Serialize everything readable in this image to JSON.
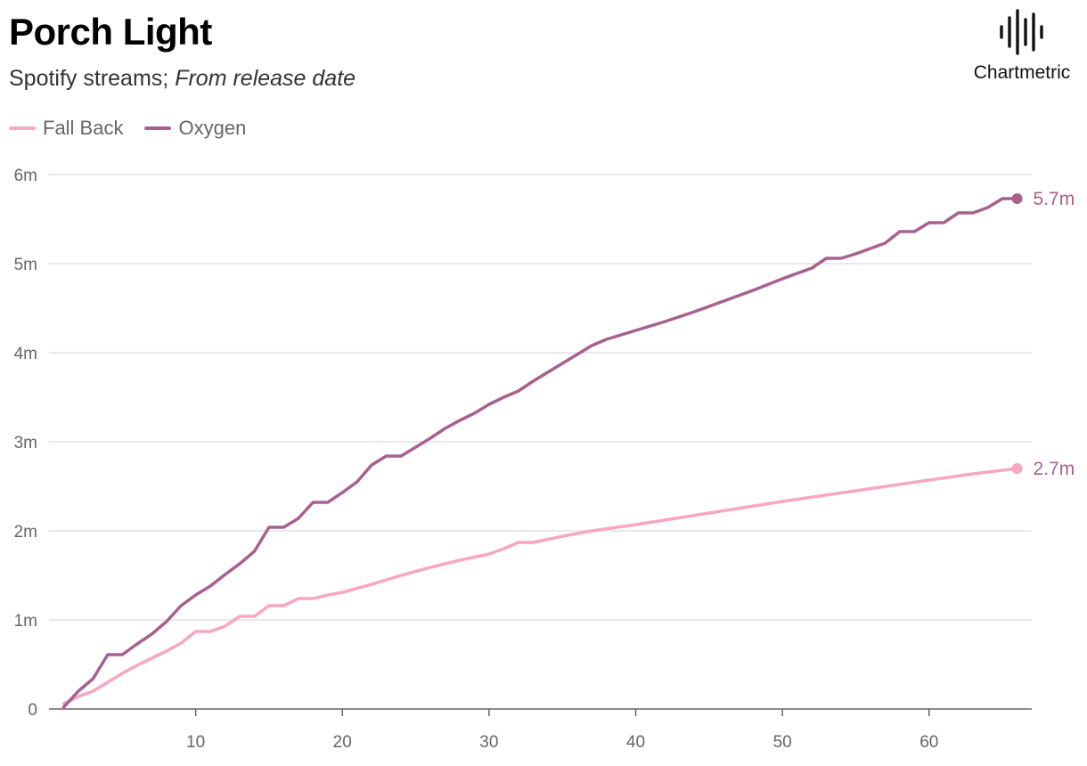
{
  "header": {
    "title": "Porch Light",
    "subtitle_plain": "Spotify streams;",
    "subtitle_italic": "From release date"
  },
  "brand": {
    "name": "Chartmetric",
    "icon": "chartmetric-waveform-icon"
  },
  "colors": {
    "fall_back": "#f9a6c2",
    "oxygen": "#a8608f",
    "grid": "#e2e2e2",
    "axis": "#666666"
  },
  "chart_data": {
    "type": "line",
    "title": "Porch Light",
    "subtitle": "Spotify streams; From release date",
    "xlabel": "",
    "ylabel": "",
    "xlim": [
      0,
      67
    ],
    "ylim": [
      0,
      6000000
    ],
    "x_ticks": [
      10,
      20,
      30,
      40,
      50,
      60
    ],
    "x_tick_labels": [
      "10",
      "20",
      "30",
      "40",
      "50",
      "60"
    ],
    "y_ticks": [
      0,
      1000000,
      2000000,
      3000000,
      4000000,
      5000000,
      6000000
    ],
    "y_tick_labels": [
      "0",
      "1m",
      "2m",
      "3m",
      "4m",
      "5m",
      "6m"
    ],
    "grid": "horizontal",
    "legend_position": "top-left",
    "series": [
      {
        "name": "Fall Back",
        "color": "#f9a6c2",
        "end_label": "2.7m",
        "points": [
          [
            1,
            60000
          ],
          [
            2,
            140000
          ],
          [
            3,
            200000
          ],
          [
            4,
            300000
          ],
          [
            5,
            400000
          ],
          [
            6,
            490000
          ],
          [
            7,
            570000
          ],
          [
            8,
            650000
          ],
          [
            9,
            740000
          ],
          [
            10,
            870000
          ],
          [
            11,
            870000
          ],
          [
            12,
            930000
          ],
          [
            13,
            1040000
          ],
          [
            14,
            1040000
          ],
          [
            15,
            1160000
          ],
          [
            16,
            1160000
          ],
          [
            17,
            1240000
          ],
          [
            18,
            1240000
          ],
          [
            19,
            1280000
          ],
          [
            20,
            1310000
          ],
          [
            22,
            1400000
          ],
          [
            24,
            1500000
          ],
          [
            26,
            1590000
          ],
          [
            28,
            1670000
          ],
          [
            30,
            1740000
          ],
          [
            31,
            1800000
          ],
          [
            32,
            1870000
          ],
          [
            33,
            1870000
          ],
          [
            35,
            1940000
          ],
          [
            37,
            2000000
          ],
          [
            40,
            2070000
          ],
          [
            45,
            2200000
          ],
          [
            50,
            2330000
          ],
          [
            55,
            2450000
          ],
          [
            60,
            2570000
          ],
          [
            63,
            2640000
          ],
          [
            66,
            2700000
          ]
        ]
      },
      {
        "name": "Oxygen",
        "color": "#a8608f",
        "end_label": "5.7m",
        "points": [
          [
            1,
            20000
          ],
          [
            2,
            200000
          ],
          [
            3,
            340000
          ],
          [
            4,
            610000
          ],
          [
            5,
            610000
          ],
          [
            6,
            730000
          ],
          [
            7,
            840000
          ],
          [
            8,
            980000
          ],
          [
            9,
            1160000
          ],
          [
            10,
            1280000
          ],
          [
            11,
            1380000
          ],
          [
            12,
            1510000
          ],
          [
            13,
            1630000
          ],
          [
            14,
            1770000
          ],
          [
            15,
            2040000
          ],
          [
            16,
            2040000
          ],
          [
            17,
            2140000
          ],
          [
            18,
            2320000
          ],
          [
            19,
            2320000
          ],
          [
            20,
            2430000
          ],
          [
            21,
            2550000
          ],
          [
            22,
            2740000
          ],
          [
            23,
            2840000
          ],
          [
            24,
            2840000
          ],
          [
            25,
            2940000
          ],
          [
            26,
            3040000
          ],
          [
            27,
            3150000
          ],
          [
            28,
            3240000
          ],
          [
            29,
            3320000
          ],
          [
            30,
            3420000
          ],
          [
            31,
            3500000
          ],
          [
            32,
            3570000
          ],
          [
            33,
            3680000
          ],
          [
            34,
            3780000
          ],
          [
            35,
            3880000
          ],
          [
            36,
            3980000
          ],
          [
            37,
            4080000
          ],
          [
            38,
            4150000
          ],
          [
            40,
            4250000
          ],
          [
            42,
            4350000
          ],
          [
            44,
            4460000
          ],
          [
            46,
            4580000
          ],
          [
            48,
            4700000
          ],
          [
            50,
            4830000
          ],
          [
            52,
            4950000
          ],
          [
            53,
            5060000
          ],
          [
            54,
            5060000
          ],
          [
            55,
            5110000
          ],
          [
            57,
            5230000
          ],
          [
            58,
            5360000
          ],
          [
            59,
            5360000
          ],
          [
            60,
            5460000
          ],
          [
            61,
            5460000
          ],
          [
            62,
            5570000
          ],
          [
            63,
            5570000
          ],
          [
            64,
            5630000
          ],
          [
            65,
            5730000
          ],
          [
            66,
            5730000
          ]
        ]
      }
    ]
  }
}
